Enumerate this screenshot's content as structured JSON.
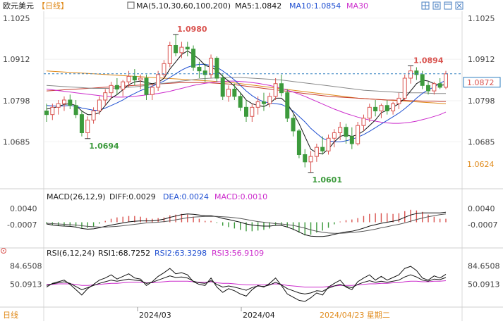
{
  "header": {
    "symbol": "欧元美元",
    "period": "【日线】",
    "ma_label": "MA(5,10,30,60,100,200)",
    "ma5": "MA5:1.0842",
    "ma10": "MA10:1.0854",
    "ma30": "MA30"
  },
  "macd_header": {
    "title": "MACD(26,12,9)",
    "diff": "DIFF:0.0029",
    "dea": "DEA:0.0024",
    "macd": "MACD:0.0010"
  },
  "rsi_header": {
    "title": "RSI(6,12,24)",
    "rsi1": "RSI1:68.7252",
    "rsi2": "RSI2:63.3298",
    "rsi3": "RSI3:56.9109"
  },
  "footer": {
    "period": "日线",
    "date1": "2024/03",
    "date2": "2024/04",
    "cursor": "2024/04/23 星期二"
  },
  "axes": {
    "price_ticks": [
      "1.1025",
      "1.0912",
      "1.0798",
      "1.0685"
    ],
    "macd_ticks": [
      "0.0040",
      "-0.0007"
    ],
    "rsi_ticks": [
      "84.6508",
      "50.0913"
    ],
    "current_price": "1.0872",
    "low_marker": "1.0624"
  },
  "annotations": {
    "high1": "1.0980",
    "high2": "1.0894",
    "low1": "1.0694",
    "low2": "1.0601"
  },
  "colors": {
    "up": "#d9534f",
    "down": "#3c9a3c",
    "ma5": "#111111",
    "ma10": "#1f4fd1",
    "ma30": "#cc2ccc",
    "ma60": "#888888",
    "ma100": "#c43a2e",
    "ma200": "#e08a1a",
    "rsi1": "#111111",
    "rsi2": "#1f4fd1",
    "rsi3": "#cc2ccc",
    "current": "#2e7dbf"
  },
  "chart_data": [
    {
      "type": "candlestick",
      "title": "欧元美元 日线",
      "ylim": [
        1.056,
        1.104
      ],
      "candles": [
        [
          1.077,
          1.079,
          1.074,
          1.076
        ],
        [
          1.076,
          1.079,
          1.0745,
          1.078
        ],
        [
          1.078,
          1.08,
          1.076,
          1.079
        ],
        [
          1.079,
          1.081,
          1.077,
          1.08
        ],
        [
          1.08,
          1.0815,
          1.0775,
          1.0785
        ],
        [
          1.0785,
          1.08,
          1.075,
          1.076
        ],
        [
          1.076,
          1.077,
          1.07,
          1.071
        ],
        [
          1.071,
          1.0755,
          1.0694,
          1.0745
        ],
        [
          1.0745,
          1.078,
          1.0735,
          1.077
        ],
        [
          1.077,
          1.081,
          1.076,
          1.08
        ],
        [
          1.08,
          1.083,
          1.0785,
          1.082
        ],
        [
          1.082,
          1.085,
          1.0805,
          1.084
        ],
        [
          1.084,
          1.086,
          1.0815,
          1.083
        ],
        [
          1.083,
          1.0855,
          1.081,
          1.085
        ],
        [
          1.085,
          1.088,
          1.0835,
          1.0865
        ],
        [
          1.0865,
          1.0885,
          1.084,
          1.0855
        ],
        [
          1.0855,
          1.087,
          1.083,
          1.086
        ],
        [
          1.086,
          1.087,
          1.08,
          1.0815
        ],
        [
          1.0815,
          1.0845,
          1.08,
          1.0835
        ],
        [
          1.0835,
          1.088,
          1.0825,
          1.087
        ],
        [
          1.087,
          1.091,
          1.086,
          1.09
        ],
        [
          1.09,
          1.096,
          1.089,
          1.095
        ],
        [
          1.095,
          1.098,
          1.092,
          1.093
        ],
        [
          1.093,
          1.096,
          1.0915,
          1.0945
        ],
        [
          1.0945,
          1.096,
          1.092,
          1.094
        ],
        [
          1.094,
          1.095,
          1.088,
          1.089
        ],
        [
          1.089,
          1.0905,
          1.086,
          1.088
        ],
        [
          1.088,
          1.09,
          1.085,
          1.087
        ],
        [
          1.087,
          1.0925,
          1.086,
          1.0915
        ],
        [
          1.0915,
          1.092,
          1.085,
          1.086
        ],
        [
          1.086,
          1.087,
          1.08,
          1.081
        ],
        [
          1.081,
          1.084,
          1.0795,
          1.083
        ],
        [
          1.083,
          1.0845,
          1.08,
          1.081
        ],
        [
          1.081,
          1.082,
          1.077,
          1.078
        ],
        [
          1.078,
          1.08,
          1.074,
          1.0755
        ],
        [
          1.0755,
          1.079,
          1.074,
          1.078
        ],
        [
          1.078,
          1.081,
          1.076,
          1.0795
        ],
        [
          1.0795,
          1.082,
          1.077,
          1.079
        ],
        [
          1.079,
          1.082,
          1.078,
          1.081
        ],
        [
          1.081,
          1.086,
          1.08,
          1.0845
        ],
        [
          1.0845,
          1.087,
          1.081,
          1.082
        ],
        [
          1.082,
          1.083,
          1.074,
          1.075
        ],
        [
          1.075,
          1.076,
          1.07,
          1.0715
        ],
        [
          1.0715,
          1.072,
          1.064,
          1.065
        ],
        [
          1.065,
          1.0665,
          1.0615,
          1.063
        ],
        [
          1.063,
          1.066,
          1.0601,
          1.0645
        ],
        [
          1.0645,
          1.068,
          1.063,
          1.067
        ],
        [
          1.067,
          1.07,
          1.065,
          1.066
        ],
        [
          1.066,
          1.0705,
          1.065,
          1.0695
        ],
        [
          1.0695,
          1.072,
          1.067,
          1.071
        ],
        [
          1.071,
          1.074,
          1.069,
          1.0725
        ],
        [
          1.0725,
          1.0735,
          1.068,
          1.07
        ],
        [
          1.07,
          1.0725,
          1.0665,
          1.068
        ],
        [
          1.068,
          1.074,
          1.0675,
          1.073
        ],
        [
          1.073,
          1.076,
          1.0715,
          1.075
        ],
        [
          1.075,
          1.079,
          1.074,
          1.078
        ],
        [
          1.078,
          1.08,
          1.0755,
          1.077
        ],
        [
          1.077,
          1.079,
          1.075,
          1.0785
        ],
        [
          1.0785,
          1.08,
          1.076,
          1.077
        ],
        [
          1.077,
          1.0795,
          1.076,
          1.079
        ],
        [
          1.079,
          1.082,
          1.0775,
          1.0805
        ],
        [
          1.0805,
          1.087,
          1.08,
          1.086
        ],
        [
          1.086,
          1.0894,
          1.0845,
          1.088
        ],
        [
          1.088,
          1.089,
          1.0855,
          1.087
        ],
        [
          1.087,
          1.088,
          1.083,
          1.084
        ],
        [
          1.084,
          1.085,
          1.0815,
          1.0825
        ],
        [
          1.0825,
          1.085,
          1.0815,
          1.0845
        ],
        [
          1.0845,
          1.086,
          1.083,
          1.0835
        ],
        [
          1.0835,
          1.088,
          1.083,
          1.0872
        ]
      ],
      "ma5": [
        1.0775,
        1.0778,
        1.0782,
        1.0788,
        1.079,
        1.0785,
        1.077,
        1.076,
        1.076,
        1.0765,
        1.0785,
        1.0805,
        1.0815,
        1.0828,
        1.0842,
        1.085,
        1.0852,
        1.0848,
        1.0845,
        1.0848,
        1.086,
        1.0885,
        1.0905,
        1.0925,
        1.0935,
        1.0925,
        1.0912,
        1.0895,
        1.089,
        1.0882,
        1.0865,
        1.0852,
        1.0838,
        1.082,
        1.08,
        1.079,
        1.0785,
        1.0782,
        1.079,
        1.0805,
        1.0805,
        1.079,
        1.0765,
        1.0735,
        1.07,
        1.0665,
        1.0655,
        1.0652,
        1.0665,
        1.0685,
        1.07,
        1.0705,
        1.07,
        1.0705,
        1.0715,
        1.073,
        1.0745,
        1.0765,
        1.0772,
        1.078,
        1.079,
        1.0805,
        1.0825,
        1.0845,
        1.0855,
        1.0852,
        1.0845,
        1.084,
        1.0842
      ],
      "ma10": [
        1.0785,
        1.0784,
        1.0783,
        1.0784,
        1.0785,
        1.0783,
        1.0778,
        1.0775,
        1.0772,
        1.0772,
        1.0778,
        1.0785,
        1.0792,
        1.08,
        1.081,
        1.0818,
        1.0826,
        1.0832,
        1.0838,
        1.0845,
        1.0852,
        1.0862,
        1.0872,
        1.0882,
        1.089,
        1.0895,
        1.0898,
        1.0898,
        1.0895,
        1.089,
        1.088,
        1.0868,
        1.0855,
        1.084,
        1.0825,
        1.0812,
        1.0802,
        1.0795,
        1.0792,
        1.079,
        1.0788,
        1.078,
        1.077,
        1.0755,
        1.074,
        1.0722,
        1.0708,
        1.0695,
        1.0688,
        1.0685,
        1.0685,
        1.0688,
        1.0692,
        1.0698,
        1.0705,
        1.0714,
        1.0724,
        1.0734,
        1.0744,
        1.0754,
        1.0764,
        1.0776,
        1.079,
        1.0805,
        1.0818,
        1.0828,
        1.0836,
        1.0846,
        1.0854
      ],
      "ma30": [
        1.083,
        1.0828,
        1.0826,
        1.0824,
        1.0822,
        1.082,
        1.0818,
        1.0816,
        1.0814,
        1.0812,
        1.081,
        1.0809,
        1.0808,
        1.0808,
        1.0809,
        1.081,
        1.0812,
        1.0814,
        1.0816,
        1.0818,
        1.0821,
        1.0824,
        1.0828,
        1.0832,
        1.0836,
        1.084,
        1.0843,
        1.0846,
        1.0848,
        1.085,
        1.0851,
        1.0852,
        1.0852,
        1.0851,
        1.085,
        1.0848,
        1.0846,
        1.0843,
        1.084,
        1.0836,
        1.0832,
        1.0827,
        1.0822,
        1.0816,
        1.081,
        1.0803,
        1.0796,
        1.0789,
        1.0782,
        1.0775,
        1.0769,
        1.0763,
        1.0758,
        1.0753,
        1.0749,
        1.0745,
        1.0742,
        1.0739,
        1.0737,
        1.0736,
        1.0736,
        1.0737,
        1.0739,
        1.0742,
        1.0746,
        1.075,
        1.0755,
        1.076,
        1.0767
      ],
      "ma60": [
        1.084,
        1.0839,
        1.0838,
        1.0837,
        1.0836,
        1.0835,
        1.0834,
        1.0833,
        1.0832,
        1.0832,
        1.0832,
        1.0832,
        1.0833,
        1.0834,
        1.0835,
        1.0836,
        1.0838,
        1.084,
        1.0842,
        1.0844,
        1.0846,
        1.0848,
        1.085,
        1.0852,
        1.0854,
        1.0856,
        1.0858,
        1.0859,
        1.086,
        1.0861,
        1.0862,
        1.0862,
        1.0862,
        1.0862,
        1.0861,
        1.086,
        1.0859,
        1.0858,
        1.0857,
        1.0856,
        1.0855,
        1.0853,
        1.0851,
        1.0849,
        1.0847,
        1.0845,
        1.0843,
        1.0841,
        1.0839,
        1.0837,
        1.0835,
        1.0833,
        1.0831,
        1.0829,
        1.0827,
        1.0826,
        1.0825,
        1.0824,
        1.0823,
        1.0822,
        1.0821,
        1.082,
        1.082,
        1.082,
        1.082,
        1.0819,
        1.0818,
        1.0818,
        1.0818
      ],
      "ma100": [
        1.0825,
        1.0826,
        1.0827,
        1.0828,
        1.0829,
        1.083,
        1.0831,
        1.0832,
        1.0833,
        1.0834,
        1.0835,
        1.0836,
        1.0837,
        1.0838,
        1.0839,
        1.084,
        1.0841,
        1.0842,
        1.0843,
        1.0844,
        1.0845,
        1.0846,
        1.0847,
        1.0848,
        1.0848,
        1.0848,
        1.0848,
        1.0848,
        1.0847,
        1.0846,
        1.0845,
        1.0844,
        1.0842,
        1.084,
        1.0838,
        1.0836,
        1.0834,
        1.0832,
        1.083,
        1.0828,
        1.0826,
        1.0824,
        1.0822,
        1.082,
        1.0818,
        1.0816,
        1.0814,
        1.0812,
        1.081,
        1.0809,
        1.0808,
        1.0807,
        1.0806,
        1.0805,
        1.0804,
        1.0803,
        1.0802,
        1.0801,
        1.08,
        1.08,
        1.0799,
        1.0799,
        1.0798,
        1.0798,
        1.0797,
        1.0797,
        1.0797,
        1.0796,
        1.0796
      ],
      "ma200": [
        1.088,
        1.0879,
        1.0878,
        1.0877,
        1.0876,
        1.0875,
        1.0874,
        1.0873,
        1.0872,
        1.0871,
        1.087,
        1.0869,
        1.0868,
        1.0867,
        1.0866,
        1.0865,
        1.0864,
        1.0863,
        1.0862,
        1.0861,
        1.086,
        1.0859,
        1.0858,
        1.0857,
        1.0856,
        1.0855,
        1.0854,
        1.0853,
        1.0852,
        1.0851,
        1.085,
        1.0849,
        1.0847,
        1.0845,
        1.0843,
        1.0841,
        1.0839,
        1.0837,
        1.0835,
        1.0833,
        1.0831,
        1.0829,
        1.0827,
        1.0825,
        1.0823,
        1.0821,
        1.0819,
        1.0817,
        1.0815,
        1.0813,
        1.0811,
        1.0809,
        1.0807,
        1.0805,
        1.0804,
        1.0803,
        1.0802,
        1.0801,
        1.08,
        1.0799,
        1.0798,
        1.0797,
        1.0796,
        1.0795,
        1.0794,
        1.0793,
        1.0792,
        1.0791,
        1.079
      ]
    },
    {
      "type": "macd",
      "title": "MACD(26,12,9)",
      "ylim": [
        -0.007,
        0.006
      ],
      "diff": [
        -0.0005,
        -0.0008,
        -0.001,
        -0.0011,
        -0.0012,
        -0.0014,
        -0.0018,
        -0.002,
        -0.0019,
        -0.0016,
        -0.0012,
        -0.0008,
        -0.0005,
        -0.0002,
        0.0001,
        0.0003,
        0.0004,
        0.0004,
        0.0004,
        0.0006,
        0.0009,
        0.0014,
        0.0018,
        0.0022,
        0.0024,
        0.0023,
        0.0021,
        0.0019,
        0.0019,
        0.0016,
        0.0011,
        0.0008,
        0.0004,
        0.0,
        -0.0005,
        -0.0008,
        -0.001,
        -0.0011,
        -0.0011,
        -0.0009,
        -0.0009,
        -0.0014,
        -0.002,
        -0.0028,
        -0.0036,
        -0.004,
        -0.0041,
        -0.0041,
        -0.0039,
        -0.0035,
        -0.0031,
        -0.0028,
        -0.0026,
        -0.0022,
        -0.0017,
        -0.0011,
        -0.0007,
        -0.0003,
        0.0,
        0.0003,
        0.0007,
        0.0014,
        0.0021,
        0.0025,
        0.0027,
        0.0027,
        0.0027,
        0.0027,
        0.0029
      ],
      "dea": [
        -0.0003,
        -0.0004,
        -0.0005,
        -0.0006,
        -0.0007,
        -0.0008,
        -0.001,
        -0.0012,
        -0.0013,
        -0.0014,
        -0.0014,
        -0.0013,
        -0.0012,
        -0.001,
        -0.0008,
        -0.0006,
        -0.0004,
        -0.0002,
        -0.0001,
        0.0,
        0.0002,
        0.0004,
        0.0007,
        0.001,
        0.0013,
        0.0015,
        0.0016,
        0.0017,
        0.0017,
        0.0017,
        0.0016,
        0.0015,
        0.0013,
        0.0011,
        0.0008,
        0.0005,
        0.0002,
        0.0,
        -0.0002,
        -0.0004,
        -0.0005,
        -0.0007,
        -0.0009,
        -0.0013,
        -0.0017,
        -0.0022,
        -0.0026,
        -0.0029,
        -0.0031,
        -0.0032,
        -0.0032,
        -0.0031,
        -0.003,
        -0.0028,
        -0.0026,
        -0.0023,
        -0.002,
        -0.0016,
        -0.0013,
        -0.0009,
        -0.0006,
        -0.0002,
        0.0003,
        0.0008,
        0.0012,
        0.0016,
        0.0019,
        0.0022,
        0.0024
      ]
    },
    {
      "type": "rsi",
      "title": "RSI(6,12,24)",
      "ylim": [
        10,
        100
      ],
      "rsi1": [
        45,
        52,
        55,
        58,
        50,
        40,
        30,
        42,
        50,
        58,
        62,
        68,
        60,
        65,
        70,
        62,
        60,
        48,
        55,
        65,
        72,
        80,
        70,
        72,
        68,
        55,
        50,
        48,
        62,
        45,
        35,
        42,
        38,
        32,
        28,
        40,
        48,
        45,
        52,
        62,
        48,
        32,
        26,
        20,
        18,
        25,
        34,
        30,
        45,
        52,
        58,
        45,
        40,
        55,
        62,
        68,
        58,
        65,
        58,
        63,
        68,
        80,
        84,
        76,
        62,
        58,
        66,
        62,
        69
      ],
      "rsi2": [
        48,
        51,
        53,
        55,
        52,
        46,
        40,
        44,
        48,
        52,
        55,
        58,
        56,
        58,
        60,
        58,
        57,
        52,
        54,
        58,
        62,
        66,
        63,
        64,
        62,
        56,
        53,
        52,
        57,
        50,
        45,
        47,
        45,
        42,
        39,
        44,
        47,
        46,
        49,
        54,
        49,
        42,
        38,
        34,
        32,
        34,
        38,
        37,
        43,
        47,
        50,
        46,
        44,
        50,
        54,
        57,
        54,
        56,
        54,
        56,
        58,
        64,
        68,
        64,
        58,
        56,
        60,
        59,
        63
      ],
      "rsi3": [
        50,
        50,
        51,
        51,
        51,
        50,
        48,
        48,
        49,
        50,
        51,
        52,
        52,
        53,
        54,
        54,
        54,
        53,
        53,
        54,
        55,
        56,
        56,
        56,
        56,
        55,
        54,
        54,
        55,
        53,
        52,
        52,
        51,
        50,
        49,
        49,
        49,
        49,
        50,
        51,
        50,
        48,
        47,
        46,
        45,
        45,
        45,
        45,
        46,
        47,
        48,
        48,
        48,
        49,
        50,
        51,
        51,
        52,
        52,
        53,
        53,
        55,
        56,
        56,
        55,
        55,
        56,
        56,
        57
      ]
    }
  ]
}
